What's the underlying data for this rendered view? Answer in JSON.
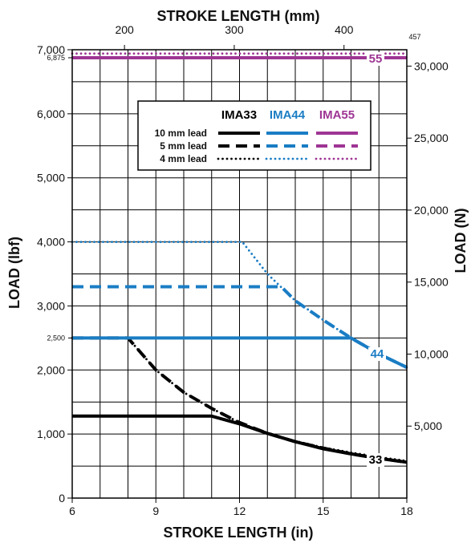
{
  "chart_data": {
    "type": "line",
    "xlabel": "STROKE LENGTH (in)",
    "x2label": "STROKE LENGTH (mm)",
    "ylabel": "LOAD (lbf)",
    "y2label": "LOAD (N)",
    "xlim": [
      6,
      18
    ],
    "ylim": [
      0,
      7000
    ],
    "x_ticks": [
      "6",
      "9",
      "12",
      "15",
      "18"
    ],
    "x2_ticks": [
      "200",
      "300",
      "400"
    ],
    "x2_edge_label": "457",
    "y_ticks": [
      "0",
      "1,000",
      "2,000",
      "3,000",
      "4,000",
      "5,000",
      "6,000",
      "7,000"
    ],
    "y_extra_ticks": [
      "2,500",
      "6,875"
    ],
    "y2_ticks": [
      "5,000",
      "10,000",
      "15,000",
      "20,000",
      "25,000",
      "30,000"
    ],
    "grid": true,
    "legend": {
      "placement": "top-center",
      "models": [
        "IMA33",
        "IMA44",
        "IMA55"
      ],
      "leads": [
        "10 mm lead",
        "5 mm lead",
        "4 mm lead"
      ]
    },
    "end_labels": {
      "IMA33": "33",
      "IMA44": "44",
      "IMA55": "55"
    },
    "colors": {
      "IMA33": "#000000",
      "IMA44": "#1a7dc4",
      "IMA55": "#9e3594"
    },
    "series": [
      {
        "model": "IMA33",
        "lead": "10 mm lead",
        "style": "solid",
        "x": [
          6,
          11,
          12,
          13,
          14,
          15,
          16,
          17,
          18
        ],
        "y": [
          1280,
          1280,
          1160,
          1010,
          880,
          770,
          690,
          620,
          560
        ]
      },
      {
        "model": "IMA33",
        "lead": "5 mm lead",
        "style": "dashed",
        "x": [
          6,
          8,
          9,
          10,
          11,
          12,
          13,
          14,
          15,
          16,
          17,
          18
        ],
        "y": [
          2500,
          2500,
          2000,
          1650,
          1400,
          1180,
          1010,
          880,
          780,
          690,
          620,
          560
        ]
      },
      {
        "model": "IMA33",
        "lead": "4 mm lead",
        "style": "dotted",
        "x": [
          6,
          8,
          9,
          10,
          11,
          12,
          13,
          14,
          15,
          16,
          17,
          18
        ],
        "y": [
          2500,
          2500,
          2000,
          1650,
          1400,
          1180,
          1010,
          890,
          790,
          710,
          640,
          580
        ]
      },
      {
        "model": "IMA44",
        "lead": "10 mm lead",
        "style": "solid",
        "x": [
          6,
          16,
          17,
          18
        ],
        "y": [
          2500,
          2500,
          2250,
          2040
        ]
      },
      {
        "model": "IMA44",
        "lead": "5 mm lead",
        "style": "dashed",
        "x": [
          6,
          13.5,
          14,
          15,
          16,
          17,
          18
        ],
        "y": [
          3300,
          3300,
          3080,
          2780,
          2500,
          2250,
          2040
        ]
      },
      {
        "model": "IMA44",
        "lead": "4 mm lead",
        "style": "dotted",
        "x": [
          6,
          12.1,
          13,
          14,
          15,
          16,
          17,
          18
        ],
        "y": [
          4000,
          4000,
          3500,
          3080,
          2780,
          2500,
          2250,
          2040
        ]
      },
      {
        "model": "IMA55",
        "lead": "10 mm lead",
        "style": "solid",
        "x": [
          6,
          18
        ],
        "y": [
          6875,
          6875
        ]
      },
      {
        "model": "IMA55",
        "lead": "5 mm lead",
        "style": "dashed",
        "x": [
          6,
          18
        ],
        "y": [
          6875,
          6875
        ]
      },
      {
        "model": "IMA55",
        "lead": "4 mm lead",
        "style": "dotted",
        "x": [
          6,
          18
        ],
        "y": [
          6940,
          6940
        ]
      }
    ]
  }
}
